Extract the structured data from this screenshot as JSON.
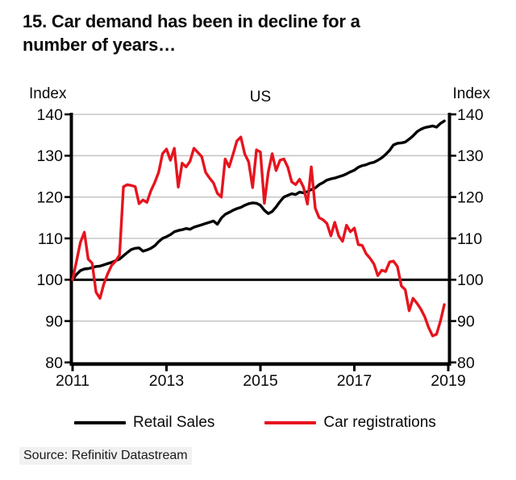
{
  "title_lines": {
    "0": "15. Car demand has been in decline for a",
    "1": "number of years…"
  },
  "chart": {
    "region_label": "US",
    "axis_label_left": "Index",
    "axis_label_right": "Index",
    "y_tick_labels": [
      140,
      130,
      120,
      110,
      100,
      90,
      80
    ],
    "x_tick_labels": [
      "2011",
      "2013",
      "2015",
      "2017",
      "2019"
    ],
    "colors": {
      "grid": "#c8c8c8",
      "axis": "#000000",
      "reference_line": "#000000",
      "red": "#e6141e"
    }
  },
  "legend": [
    {
      "label": "Retail Sales",
      "color": "#000000"
    },
    {
      "label": "Car registrations",
      "color": "#e6141e"
    }
  ],
  "source": "Source: Refinitiv Datastream",
  "chart_data": {
    "type": "line",
    "title": "US",
    "xlabel": "",
    "ylabel": "Index",
    "x_start": "2011-01",
    "frequency": "monthly",
    "xlim": [
      2011,
      2019
    ],
    "ylim": [
      80,
      140
    ],
    "grid": true,
    "gridline_values": [
      140,
      130,
      120,
      110,
      90
    ],
    "reference_line": 100,
    "legend_position": "bottom",
    "series": [
      {
        "name": "Retail Sales",
        "color": "#000000",
        "values": [
          100.0,
          101.3,
          102.2,
          102.6,
          102.7,
          102.9,
          103.2,
          103.3,
          103.6,
          103.9,
          104.2,
          104.6,
          105.0,
          105.8,
          106.6,
          107.3,
          107.6,
          107.7,
          106.9,
          107.2,
          107.6,
          108.2,
          109.2,
          110.0,
          110.4,
          110.9,
          111.6,
          111.9,
          112.1,
          112.4,
          112.2,
          112.7,
          113.0,
          113.3,
          113.6,
          113.9,
          114.2,
          113.4,
          114.9,
          115.8,
          116.3,
          116.8,
          117.2,
          117.5,
          118.0,
          118.4,
          118.6,
          118.5,
          118.0,
          116.8,
          116.0,
          116.5,
          117.6,
          118.9,
          120.0,
          120.4,
          120.8,
          120.6,
          121.2,
          121.0,
          121.3,
          121.8,
          122.2,
          123.0,
          123.5,
          124.1,
          124.4,
          124.6,
          124.9,
          125.2,
          125.6,
          126.1,
          126.5,
          127.2,
          127.6,
          127.8,
          128.2,
          128.4,
          128.9,
          129.5,
          130.3,
          131.3,
          132.6,
          133.0,
          133.1,
          133.3,
          134.0,
          134.8,
          135.8,
          136.4,
          136.8,
          137.0,
          137.2,
          136.9,
          137.8,
          138.4
        ]
      },
      {
        "name": "Car registrations",
        "color": "#e6141e",
        "values": [
          100.0,
          104.5,
          109.0,
          111.5,
          105.0,
          104.0,
          97.0,
          95.5,
          99.0,
          101.5,
          103.5,
          104.5,
          106.0,
          122.5,
          123.0,
          122.8,
          122.5,
          118.4,
          119.3,
          118.7,
          121.5,
          123.5,
          126.0,
          130.5,
          131.6,
          128.9,
          131.8,
          122.4,
          128.2,
          127.3,
          128.6,
          131.8,
          130.8,
          129.8,
          126.0,
          124.6,
          123.4,
          120.9,
          120.0,
          129.2,
          127.3,
          130.3,
          133.6,
          134.5,
          130.4,
          128.5,
          122.3,
          131.4,
          130.9,
          118.5,
          126.0,
          130.5,
          126.4,
          128.9,
          129.2,
          127.2,
          123.7,
          123.0,
          124.3,
          122.4,
          118.3,
          127.3,
          117.3,
          115.0,
          114.5,
          113.6,
          110.6,
          113.9,
          110.6,
          109.3,
          113.2,
          111.6,
          112.5,
          108.5,
          108.3,
          106.3,
          105.2,
          103.8,
          101.0,
          102.3,
          102.0,
          104.3,
          104.5,
          103.2,
          98.5,
          97.6,
          92.5,
          95.5,
          94.3,
          92.9,
          91.0,
          88.4,
          86.4,
          86.8,
          90.0,
          94.0
        ]
      }
    ]
  }
}
